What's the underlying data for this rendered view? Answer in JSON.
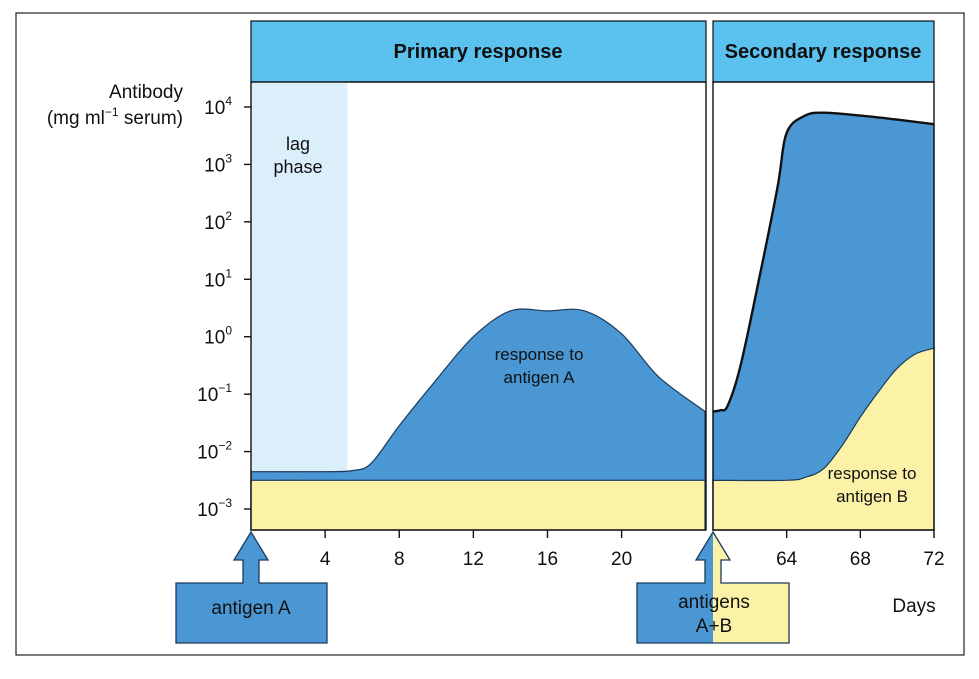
{
  "colors": {
    "header_fill": "#5bc2ef",
    "lag_fill": "#dbeffa",
    "response_a_fill": "#4b97d3",
    "response_b_fill": "#fbf2a8",
    "axis": "#111111",
    "text": "#111111"
  },
  "chart_data": {
    "type": "area",
    "scale_y": "log10",
    "ylim_exponents": [
      -3,
      4
    ],
    "ylabel_line1": "Antibody",
    "ylabel_line2": "(mg ml",
    "ylabel_sup": "−1",
    "ylabel_line2_end": " serum)",
    "y_ticks": [
      {
        "base": "10",
        "exp": "4"
      },
      {
        "base": "10",
        "exp": "3"
      },
      {
        "base": "10",
        "exp": "2"
      },
      {
        "base": "10",
        "exp": "1"
      },
      {
        "base": "10",
        "exp": "0"
      },
      {
        "base": "10",
        "exp": "−1"
      },
      {
        "base": "10",
        "exp": "−2"
      },
      {
        "base": "10",
        "exp": "−3"
      }
    ],
    "xlabel": "Days",
    "x_ticks_primary": [
      "4",
      "8",
      "12",
      "16",
      "20"
    ],
    "x_ticks_secondary": [
      "64",
      "68",
      "72"
    ],
    "header_primary": "Primary response",
    "header_secondary": "Secondary response",
    "lag_label_line1": "lag",
    "lag_label_line2": "phase",
    "label_response_a_line1": "response to",
    "label_response_a_line2": "antigen A",
    "label_response_b_line1": "response to",
    "label_response_b_line2": "antigen B",
    "arrow_a_label": "antigen A",
    "arrow_ab_line1": "antigens",
    "arrow_ab_line2": "A+B",
    "primary_xrange": [
      0,
      24.5
    ],
    "secondary_xrange": [
      60,
      72
    ],
    "lag_phase_end_day": 5.2,
    "series_primary_A": {
      "name": "response to antigen A",
      "x": [
        0,
        4,
        5.5,
        6.5,
        8,
        10,
        12,
        14,
        16,
        18,
        20,
        22,
        24.5
      ],
      "log_y": [
        -2.35,
        -2.35,
        -2.33,
        -2.2,
        -1.55,
        -0.75,
        0.0,
        0.45,
        0.45,
        0.45,
        0.05,
        -0.7,
        -1.3
      ]
    },
    "series_primary_B_baseline": {
      "x": [
        0,
        24.5
      ],
      "log_y": [
        -2.5,
        -2.5
      ]
    },
    "series_secondary_A": {
      "name": "response to antigen A",
      "x": [
        60,
        60.4,
        60.8,
        61.5,
        62.5,
        63.5,
        64,
        65,
        66,
        68,
        70,
        72
      ],
      "log_y": [
        -1.3,
        -1.28,
        -1.2,
        -0.5,
        1.0,
        2.6,
        3.55,
        3.85,
        3.9,
        3.85,
        3.78,
        3.7
      ],
      "clip_pre_bump": true
    },
    "series_secondary_B": {
      "name": "response to antigen B",
      "x": [
        60,
        64,
        65,
        66,
        67,
        68,
        69,
        70,
        71,
        72
      ],
      "log_y": [
        -2.5,
        -2.5,
        -2.45,
        -2.3,
        -1.9,
        -1.4,
        -0.95,
        -0.55,
        -0.3,
        -0.2
      ]
    }
  }
}
